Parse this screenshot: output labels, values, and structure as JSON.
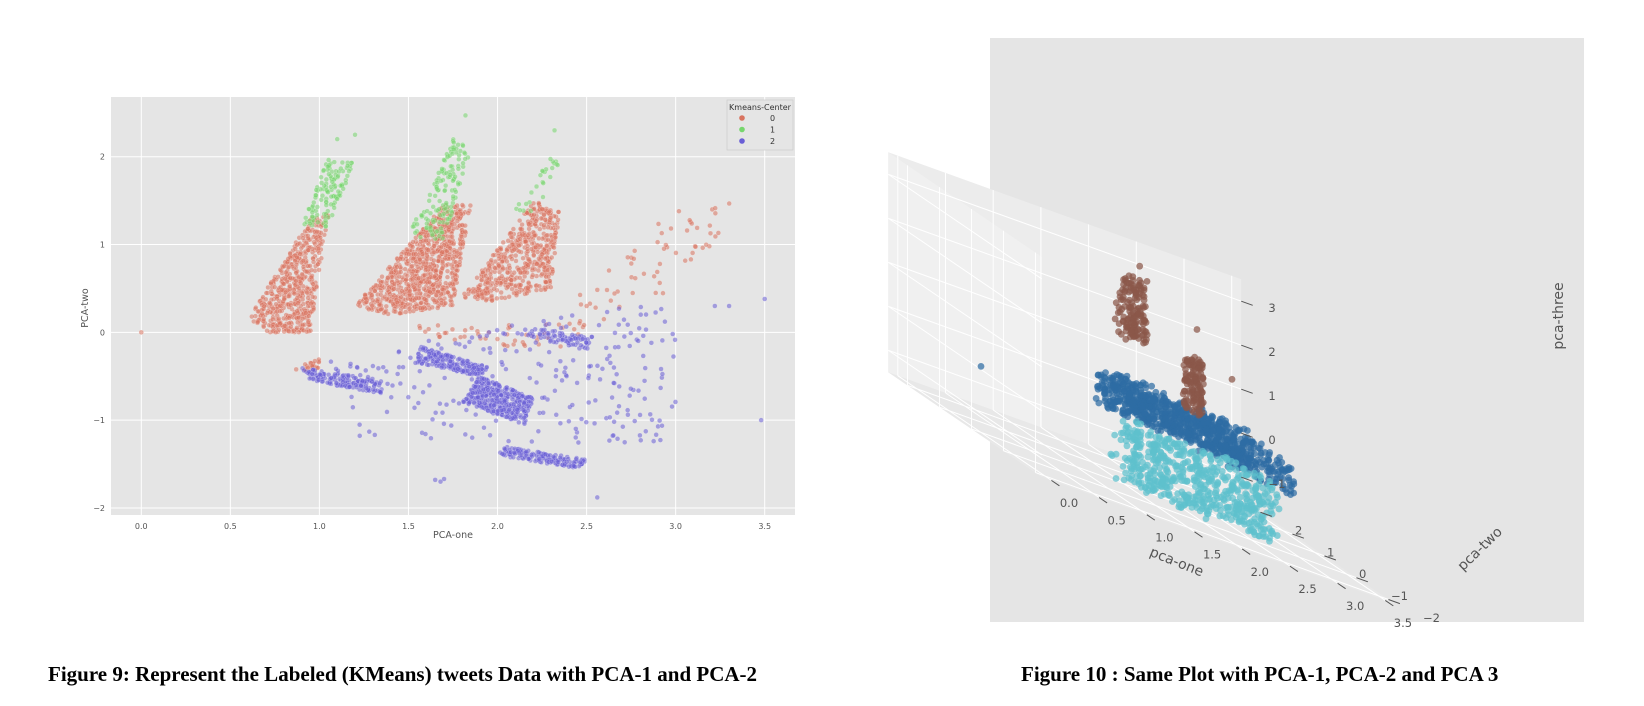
{
  "figures": {
    "fig9_caption": "Figure 9: Represent the Labeled (KMeans) tweets Data with PCA-1 and PCA-2",
    "fig10_caption": "Figure 10 : Same Plot with PCA-1, PCA-2 and PCA 3"
  },
  "chart_data": [
    {
      "type": "scatter",
      "xlabel": "PCA-one",
      "ylabel": "PCA-two",
      "xlim": [
        -0.17,
        3.67
      ],
      "ylim": [
        -2.08,
        2.68
      ],
      "xticks": [
        "0.0",
        "0.5",
        "1.0",
        "1.5",
        "2.0",
        "2.5",
        "3.0",
        "3.5"
      ],
      "xtick_values": [
        0,
        0.5,
        1.0,
        1.5,
        2.0,
        2.5,
        3.0,
        3.5
      ],
      "yticks": [
        "2",
        "1",
        "0",
        "−1",
        "−2"
      ],
      "ytick_values": [
        2,
        1,
        0,
        -1,
        -2
      ],
      "grid": true,
      "background": "#e5e5e5",
      "legend": {
        "title": "Kmeans-Center",
        "placement": "top-right",
        "entries": [
          "0",
          "1",
          "2"
        ]
      },
      "series": [
        {
          "name": "0",
          "color": "#d8735f",
          "clusters": [
            {
              "poly": [
                [
                  0.6,
                  0.15
                ],
                [
                  0.95,
                  1.3
                ],
                [
                  1.05,
                  1.35
                ],
                [
                  0.95,
                  0.0
                ],
                [
                  0.7,
                  0.0
                ]
              ],
              "n": 520
            },
            {
              "poly": [
                [
                  1.2,
                  0.3
                ],
                [
                  1.7,
                  1.45
                ],
                [
                  1.85,
                  1.45
                ],
                [
                  1.75,
                  0.3
                ],
                [
                  1.4,
                  0.2
                ]
              ],
              "n": 820
            },
            {
              "poly": [
                [
                  1.8,
                  0.4
                ],
                [
                  2.2,
                  1.5
                ],
                [
                  2.35,
                  1.4
                ],
                [
                  2.3,
                  0.5
                ],
                [
                  1.95,
                  0.35
                ]
              ],
              "n": 520
            },
            {
              "poly": [
                [
                  2.3,
                  0.2
                ],
                [
                  2.95,
                  1.4
                ],
                [
                  3.4,
                  1.5
                ],
                [
                  3.0,
                  0.5
                ],
                [
                  2.5,
                  0.0
                ]
              ],
              "n": 60
            },
            {
              "poly": [
                [
                  1.55,
                  0.1
                ],
                [
                  2.5,
                  0.1
                ],
                [
                  2.4,
                  -0.2
                ],
                [
                  1.6,
                  -0.1
                ]
              ],
              "n": 50
            },
            {
              "poly": [
                [
                  0.85,
                  -0.42
                ],
                [
                  1.0,
                  -0.3
                ],
                [
                  1.0,
                  -0.45
                ]
              ],
              "n": 25
            }
          ],
          "points": [
            [
              0.0,
              0.0
            ]
          ]
        },
        {
          "name": "1",
          "color": "#77d66d",
          "clusters": [
            {
              "poly": [
                [
                  0.9,
                  1.2
                ],
                [
                  1.05,
                  2.0
                ],
                [
                  1.2,
                  1.95
                ],
                [
                  1.05,
                  1.2
                ]
              ],
              "n": 120
            },
            {
              "poly": [
                [
                  1.5,
                  1.1
                ],
                [
                  1.75,
                  2.2
                ],
                [
                  1.85,
                  2.1
                ],
                [
                  1.7,
                  1.05
                ]
              ],
              "n": 140
            },
            {
              "poly": [
                [
                  2.1,
                  1.4
                ],
                [
                  2.3,
                  2.0
                ],
                [
                  2.35,
                  1.9
                ],
                [
                  2.2,
                  1.3
                ]
              ],
              "n": 25
            }
          ],
          "points": [
            [
              1.82,
              2.47
            ],
            [
              2.32,
              2.3
            ],
            [
              1.2,
              2.25
            ],
            [
              1.1,
              2.2
            ]
          ]
        },
        {
          "name": "2",
          "color": "#6a5fd6",
          "clusters": [
            {
              "poly": [
                [
                  0.9,
                  -0.4
                ],
                [
                  1.35,
                  -0.55
                ],
                [
                  1.35,
                  -0.7
                ],
                [
                  0.95,
                  -0.55
                ]
              ],
              "n": 160
            },
            {
              "poly": [
                [
                  1.55,
                  -0.15
                ],
                [
                  1.95,
                  -0.4
                ],
                [
                  1.9,
                  -0.5
                ],
                [
                  1.55,
                  -0.35
                ]
              ],
              "n": 220
            },
            {
              "poly": [
                [
                  1.9,
                  -0.5
                ],
                [
                  2.2,
                  -0.75
                ],
                [
                  2.15,
                  -1.05
                ],
                [
                  1.8,
                  -0.8
                ]
              ],
              "n": 380
            },
            {
              "poly": [
                [
                  2.05,
                  -1.3
                ],
                [
                  2.5,
                  -1.45
                ],
                [
                  2.45,
                  -1.55
                ],
                [
                  2.0,
                  -1.4
                ]
              ],
              "n": 160
            },
            {
              "poly": [
                [
                  2.2,
                  0.05
                ],
                [
                  2.55,
                  -0.05
                ],
                [
                  2.5,
                  -0.2
                ],
                [
                  2.15,
                  -0.05
                ]
              ],
              "n": 70
            },
            {
              "poly": [
                [
                  1.0,
                  -0.3
                ],
                [
                  3.0,
                  0.4
                ],
                [
                  3.0,
                  -1.3
                ],
                [
                  1.2,
                  -1.2
                ]
              ],
              "n": 250
            }
          ],
          "points": [
            [
              3.48,
              -1.0
            ],
            [
              3.5,
              0.38
            ],
            [
              3.3,
              0.3
            ],
            [
              3.22,
              0.3
            ],
            [
              1.65,
              -1.68
            ],
            [
              1.7,
              -1.67
            ],
            [
              1.68,
              -1.7
            ],
            [
              2.56,
              -1.88
            ]
          ]
        }
      ]
    },
    {
      "type": "scatter",
      "projection": "3d",
      "xlabel": "pca-one",
      "ylabel": "pca-two",
      "zlabel": "pca-three",
      "xticks": [
        "0.0",
        "0.5",
        "1.0",
        "1.5",
        "2.0",
        "2.5",
        "3.0",
        "3.5"
      ],
      "yticks": [
        "−2",
        "−1",
        "0",
        "1",
        "2"
      ],
      "zticks": [
        "−1",
        "0",
        "1",
        "2",
        "3"
      ],
      "grid": true,
      "background": "#e5e5e5",
      "series": [
        {
          "name": "",
          "color": "#2e6ca4",
          "clusters": [
            {
              "poly": [
                [
                  1.0,
                  -0.4,
                  0.5
                ],
                [
                  1.5,
                  0.0,
                  1.0
                ],
                [
                  2.3,
                  -0.7,
                  0.5
                ],
                [
                  2.5,
                  -1.2,
                  0.4
                ],
                [
                  1.6,
                  -1.2,
                  0.2
                ]
              ],
              "n": 620
            },
            {
              "poly": [
                [
                  2.0,
                  -0.8,
                  0.3
                ],
                [
                  2.5,
                  -0.3,
                  0.8
                ],
                [
                  2.8,
                  -1.5,
                  0.2
                ],
                [
                  2.6,
                  -2.0,
                  0.0
                ]
              ],
              "n": 200
            }
          ],
          "points": [
            [
              0.0,
              0.0,
              0.0
            ]
          ]
        },
        {
          "name": "",
          "color": "#5ec1cd",
          "clusters": [
            {
              "poly": [
                [
                  1.1,
                  -0.7,
                  0.0
                ],
                [
                  1.4,
                  -0.7,
                  0.2
                ],
                [
                  2.0,
                  -1.5,
                  -1.3
                ],
                [
                  1.7,
                  -1.8,
                  -1.3
                ]
              ],
              "n": 340
            },
            {
              "poly": [
                [
                  1.9,
                  -1.0,
                  0.2
                ],
                [
                  2.3,
                  -1.0,
                  0.2
                ],
                [
                  2.6,
                  -1.7,
                  -1.0
                ],
                [
                  2.3,
                  -2.0,
                  -1.2
                ]
              ],
              "n": 220
            }
          ],
          "points": []
        },
        {
          "name": "",
          "color": "#8b574a",
          "clusters": [
            {
              "poly": [
                [
                  1.6,
                  0.6,
                  1.6
                ],
                [
                  2.0,
                  1.3,
                  3.0
                ],
                [
                  2.2,
                  1.3,
                  3.0
                ],
                [
                  1.9,
                  0.6,
                  1.6
                ]
              ],
              "n": 140
            },
            {
              "poly": [
                [
                  2.1,
                  0.0,
                  0.6
                ],
                [
                  2.4,
                  0.7,
                  1.6
                ],
                [
                  2.6,
                  0.8,
                  1.8
                ],
                [
                  2.4,
                  0.2,
                  0.6
                ]
              ],
              "n": 120
            }
          ],
          "points": [
            [
              2.2,
              1.6,
              3.2
            ],
            [
              2.7,
              1.3,
              2.3
            ],
            [
              3.0,
              1.1,
              1.5
            ]
          ]
        }
      ]
    }
  ]
}
